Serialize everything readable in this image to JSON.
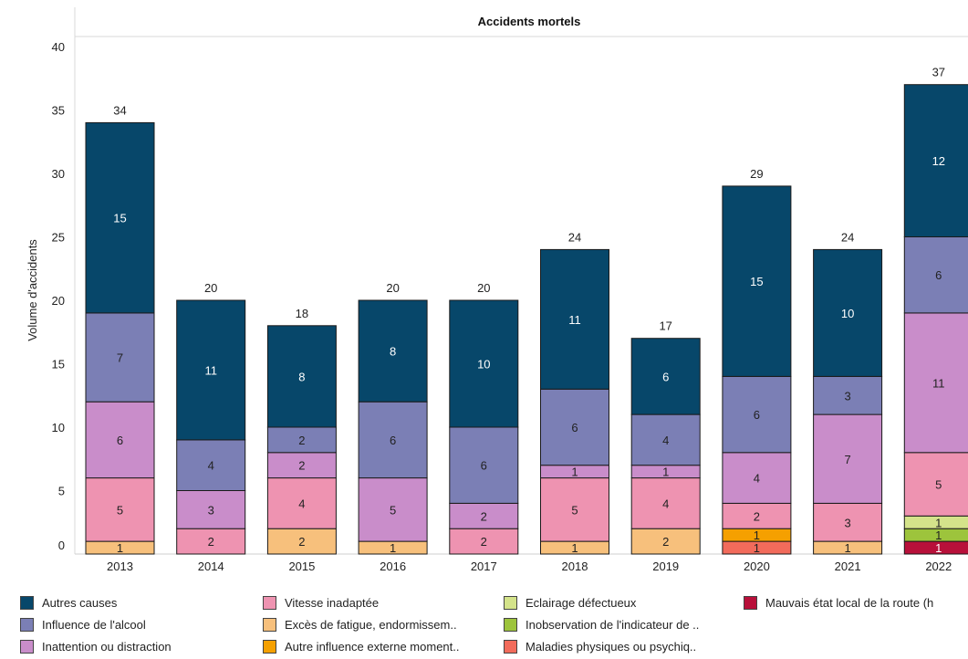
{
  "chart_data": {
    "type": "bar",
    "stacked": true,
    "title": "Accidents mortels",
    "ylabel": "Volume d'accidents",
    "xlabel": "",
    "ylim": [
      0,
      40
    ],
    "yticks": [
      0,
      5,
      10,
      15,
      20,
      25,
      30,
      35,
      40
    ],
    "grid": true,
    "legend_position": "bottom",
    "categories": [
      "2013",
      "2014",
      "2015",
      "2016",
      "2017",
      "2018",
      "2019",
      "2020",
      "2021",
      "2022"
    ],
    "totals": [
      34,
      20,
      18,
      20,
      20,
      24,
      17,
      29,
      24,
      37
    ],
    "series": [
      {
        "name": "Maladies physiques ou psychiq..",
        "color": "#f26b5b",
        "values": [
          0,
          0,
          0,
          0,
          0,
          0,
          0,
          1,
          0,
          0
        ]
      },
      {
        "name": "Mauvais état local de la route (h",
        "color": "#b8103a",
        "values": [
          0,
          0,
          0,
          0,
          0,
          0,
          0,
          0,
          0,
          1
        ]
      },
      {
        "name": "Autre influence externe moment..",
        "color": "#f5a000",
        "values": [
          0,
          0,
          0,
          0,
          0,
          0,
          0,
          1,
          0,
          0
        ]
      },
      {
        "name": "Inobservation de l'indicateur de ..",
        "color": "#9dc43c",
        "values": [
          0,
          0,
          0,
          0,
          0,
          0,
          0,
          0,
          0,
          1
        ]
      },
      {
        "name": "Eclairage défectueux",
        "color": "#d4e38a",
        "values": [
          0,
          0,
          0,
          0,
          0,
          0,
          0,
          0,
          0,
          1
        ]
      },
      {
        "name": "Excès de fatigue, endormissem..",
        "color": "#f7c07c",
        "values": [
          1,
          0,
          2,
          1,
          0,
          1,
          2,
          0,
          1,
          0
        ]
      },
      {
        "name": "Vitesse inadaptée",
        "color": "#ee93b1",
        "values": [
          5,
          2,
          4,
          0,
          2,
          5,
          4,
          2,
          3,
          5
        ]
      },
      {
        "name": "Inattention ou distraction",
        "color": "#c98dca",
        "values": [
          6,
          3,
          2,
          5,
          2,
          1,
          1,
          4,
          7,
          11
        ]
      },
      {
        "name": "Influence de l'alcool",
        "color": "#7b7fb5",
        "values": [
          7,
          4,
          2,
          6,
          6,
          6,
          4,
          6,
          3,
          6
        ]
      },
      {
        "name": "Autres causes",
        "color": "#07476a",
        "values": [
          15,
          11,
          8,
          8,
          10,
          11,
          6,
          15,
          10,
          12
        ]
      }
    ],
    "legend_order": [
      "Autres causes",
      "Influence de l'alcool",
      "Inattention ou distraction",
      "Vitesse inadaptée",
      "Excès de fatigue, endormissem..",
      "Autre influence externe moment..",
      "Eclairage défectueux",
      "Inobservation de l'indicateur de ..",
      "Maladies physiques ou psychiq..",
      "Mauvais état local de la route (h"
    ]
  }
}
